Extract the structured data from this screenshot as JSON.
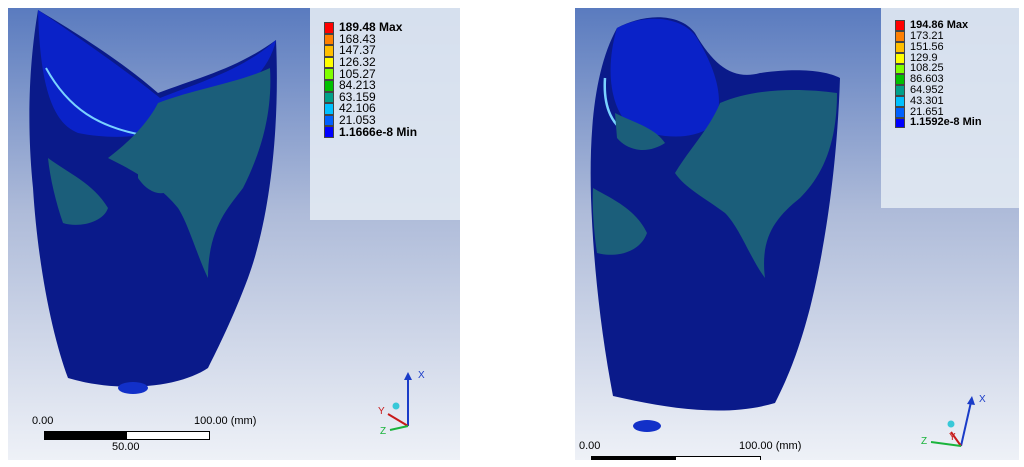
{
  "left_view": {
    "legend": {
      "max_label": "189.48 Max",
      "min_label": "1.1666e-8 Min",
      "levels": [
        "189.48 Max",
        "168.43",
        "147.37",
        "126.32",
        "105.27",
        "84.213",
        "63.159",
        "42.106",
        "21.053",
        "1.1666e-8 Min"
      ]
    },
    "scale": {
      "start": "0.00",
      "end": "100.00 (mm)",
      "mid": "50.00"
    },
    "triad": {
      "x_label": "X",
      "y_label": "Y",
      "z_label": "Z"
    }
  },
  "right_view": {
    "legend": {
      "max_label": "194.86 Max",
      "min_label": "1.1592e-8 Min",
      "levels": [
        "194.86 Max",
        "173.21",
        "151.56",
        "129.9",
        "108.25",
        "86.603",
        "64.952",
        "43.301",
        "21.651",
        "1.1592e-8 Min"
      ]
    },
    "scale": {
      "start": "0.00",
      "end": "100.00 (mm)"
    },
    "triad": {
      "x_label": "X",
      "y_label": "Y",
      "z_label": "Z"
    }
  },
  "colors": {
    "contour": [
      "#ff0000",
      "#ff7f00",
      "#ffbf00",
      "#ffff00",
      "#7fff00",
      "#00c000",
      "#00a08a",
      "#00c0ff",
      "#0060ff",
      "#0000ff"
    ],
    "model_base": "#0a1a8a",
    "model_mid": "#1b5e7a",
    "background_top": "#5a7bbf",
    "background_bottom": "#e8ecf4"
  }
}
